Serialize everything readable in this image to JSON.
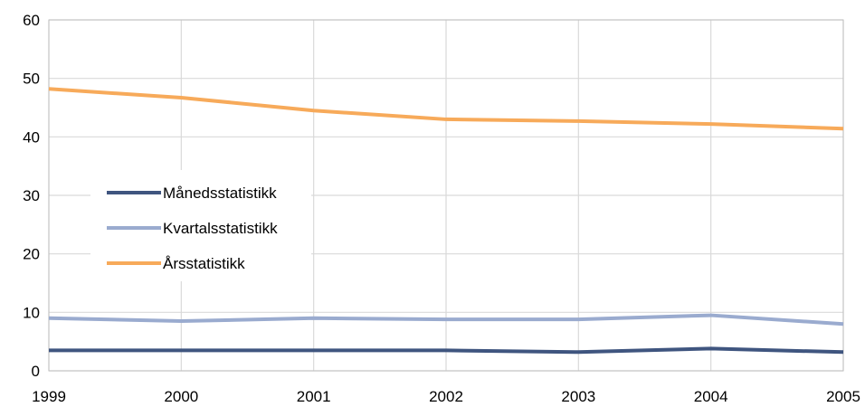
{
  "chart_data": {
    "type": "line",
    "x": [
      "1999",
      "2000",
      "2001",
      "2002",
      "2003",
      "2004",
      "2005"
    ],
    "ylim": [
      0,
      60
    ],
    "yticks": [
      "0",
      "10",
      "20",
      "30",
      "40",
      "50",
      "60"
    ],
    "grid": true,
    "legend_position": "left-middle",
    "series": [
      {
        "name": "Månedsstatistikk",
        "color": "#3f557f",
        "values": [
          3.5,
          3.5,
          3.5,
          3.5,
          3.2,
          3.8,
          3.2
        ]
      },
      {
        "name": "Kvartalsstatistikk",
        "color": "#9aabcf",
        "values": [
          9.0,
          8.5,
          9.0,
          8.8,
          8.8,
          9.5,
          8.0
        ]
      },
      {
        "name": "Årsstatistikk",
        "color": "#f7aa5a",
        "values": [
          48.2,
          46.7,
          44.5,
          43.0,
          42.7,
          42.2,
          41.4
        ]
      }
    ]
  }
}
